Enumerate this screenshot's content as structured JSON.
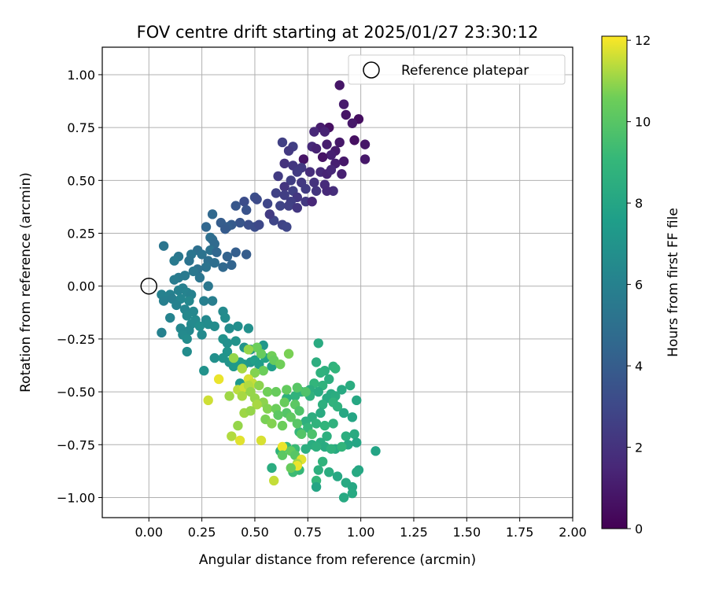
{
  "chart_data": {
    "type": "scatter",
    "title": "FOV centre drift starting at 2025/01/27 23:30:12",
    "xlabel": "Angular distance from reference (arcmin)",
    "ylabel": "Rotation from reference (arcmin)",
    "xlim": [
      -0.22,
      2.0
    ],
    "ylim": [
      -1.095,
      1.13
    ],
    "xticks": [
      "0.00",
      "0.25",
      "0.50",
      "0.75",
      "1.00",
      "1.25",
      "1.50",
      "1.75",
      "2.00"
    ],
    "yticks": [
      "1.00",
      "0.75",
      "0.50",
      "0.25",
      "0.00",
      "−0.25",
      "−0.50",
      "−0.75",
      "−1.00"
    ],
    "grid": true,
    "legend": {
      "position": "top-right",
      "entries": [
        "Reference platepar"
      ]
    },
    "reference_point": {
      "x": 0.0,
      "y": 0.0
    },
    "colorbar": {
      "label": "Hours from first FF file",
      "colormap": "viridis",
      "range": [
        0,
        12.1
      ],
      "ticks": [
        "0",
        "2",
        "4",
        "6",
        "8",
        "10",
        "12"
      ]
    },
    "series_points": [
      [
        0.9,
        0.95,
        0.8
      ],
      [
        0.92,
        0.86,
        1.0
      ],
      [
        0.93,
        0.81,
        0.7
      ],
      [
        0.99,
        0.79,
        0.5
      ],
      [
        0.96,
        0.77,
        0.9
      ],
      [
        0.85,
        0.75,
        0.6
      ],
      [
        0.81,
        0.75,
        1.1
      ],
      [
        0.83,
        0.73,
        1.3
      ],
      [
        0.78,
        0.73,
        1.5
      ],
      [
        1.02,
        0.67,
        0.8
      ],
      [
        0.97,
        0.69,
        0.6
      ],
      [
        0.9,
        0.68,
        0.9
      ],
      [
        0.84,
        0.67,
        1.1
      ],
      [
        0.77,
        0.66,
        1.6
      ],
      [
        0.79,
        0.65,
        1.3
      ],
      [
        0.63,
        0.68,
        2.6
      ],
      [
        0.68,
        0.66,
        2.5
      ],
      [
        0.66,
        0.64,
        2.3
      ],
      [
        0.88,
        0.64,
        1.0
      ],
      [
        0.86,
        0.62,
        1.2
      ],
      [
        0.82,
        0.61,
        0.7
      ],
      [
        0.73,
        0.6,
        0.7
      ],
      [
        1.02,
        0.6,
        0.9
      ],
      [
        0.92,
        0.59,
        0.9
      ],
      [
        0.88,
        0.58,
        1.2
      ],
      [
        0.64,
        0.58,
        2.0
      ],
      [
        0.68,
        0.57,
        2.2
      ],
      [
        0.72,
        0.56,
        2.3
      ],
      [
        0.7,
        0.54,
        2.4
      ],
      [
        0.76,
        0.54,
        1.8
      ],
      [
        0.81,
        0.54,
        1.6
      ],
      [
        0.84,
        0.53,
        1.4
      ],
      [
        0.86,
        0.55,
        1.5
      ],
      [
        0.91,
        0.53,
        1.2
      ],
      [
        0.61,
        0.52,
        2.4
      ],
      [
        0.67,
        0.5,
        2.5
      ],
      [
        0.72,
        0.49,
        2.3
      ],
      [
        0.78,
        0.49,
        2.0
      ],
      [
        0.83,
        0.48,
        1.7
      ],
      [
        0.64,
        0.47,
        2.1
      ],
      [
        0.68,
        0.45,
        2.6
      ],
      [
        0.74,
        0.46,
        2.4
      ],
      [
        0.79,
        0.45,
        2.1
      ],
      [
        0.87,
        0.45,
        1.8
      ],
      [
        0.6,
        0.44,
        2.7
      ],
      [
        0.64,
        0.43,
        2.5
      ],
      [
        0.7,
        0.42,
        2.2
      ],
      [
        0.67,
        0.4,
        2.5
      ],
      [
        0.74,
        0.4,
        2.3
      ],
      [
        0.84,
        0.45,
        1.6
      ],
      [
        0.5,
        0.42,
        3.3
      ],
      [
        0.51,
        0.41,
        3.1
      ],
      [
        0.56,
        0.39,
        2.9
      ],
      [
        0.62,
        0.38,
        2.8
      ],
      [
        0.66,
        0.38,
        2.6
      ],
      [
        0.7,
        0.37,
        2.2
      ],
      [
        0.77,
        0.4,
        1.5
      ],
      [
        0.45,
        0.4,
        3.2
      ],
      [
        0.41,
        0.38,
        3.7
      ],
      [
        0.46,
        0.36,
        3.5
      ],
      [
        0.59,
        0.31,
        2.9
      ],
      [
        0.63,
        0.29,
        2.8
      ],
      [
        0.57,
        0.34,
        2.4
      ],
      [
        0.65,
        0.28,
        2.9
      ],
      [
        0.47,
        0.29,
        3.3
      ],
      [
        0.43,
        0.3,
        3.6
      ],
      [
        0.39,
        0.29,
        3.9
      ],
      [
        0.34,
        0.3,
        4.0
      ],
      [
        0.37,
        0.28,
        4.1
      ],
      [
        0.5,
        0.28,
        3.2
      ],
      [
        0.52,
        0.29,
        3.0
      ],
      [
        0.36,
        0.27,
        3.9
      ],
      [
        0.3,
        0.34,
        4.6
      ],
      [
        0.27,
        0.28,
        4.5
      ],
      [
        0.29,
        0.23,
        5.0
      ],
      [
        0.3,
        0.22,
        4.8
      ],
      [
        0.31,
        0.2,
        4.7
      ],
      [
        0.29,
        0.17,
        5.1
      ],
      [
        0.32,
        0.16,
        4.5
      ],
      [
        0.41,
        0.16,
        4.1
      ],
      [
        0.37,
        0.14,
        4.3
      ],
      [
        0.46,
        0.15,
        4.0
      ],
      [
        0.23,
        0.17,
        5.0
      ],
      [
        0.25,
        0.15,
        5.2
      ],
      [
        0.2,
        0.15,
        5.3
      ],
      [
        0.14,
        0.14,
        5.4
      ],
      [
        0.12,
        0.12,
        5.6
      ],
      [
        0.07,
        0.19,
        5.3
      ],
      [
        0.19,
        0.12,
        5.2
      ],
      [
        0.28,
        0.12,
        5.0
      ],
      [
        0.31,
        0.11,
        4.9
      ],
      [
        0.27,
        0.09,
        5.2
      ],
      [
        0.35,
        0.09,
        4.6
      ],
      [
        0.39,
        0.1,
        4.4
      ],
      [
        0.23,
        0.08,
        5.1
      ],
      [
        0.21,
        0.07,
        5.4
      ],
      [
        0.24,
        0.04,
        5.3
      ],
      [
        0.17,
        0.05,
        5.6
      ],
      [
        0.14,
        0.04,
        5.6
      ],
      [
        0.12,
        0.03,
        5.7
      ],
      [
        0.28,
        0.0,
        5.4
      ],
      [
        0.16,
        -0.01,
        5.9
      ],
      [
        0.14,
        -0.02,
        6.0
      ],
      [
        0.18,
        -0.03,
        6.1
      ],
      [
        0.06,
        -0.04,
        6.0
      ],
      [
        0.1,
        -0.04,
        6.0
      ],
      [
        0.2,
        -0.04,
        6.0
      ],
      [
        0.07,
        -0.07,
        5.9
      ],
      [
        0.11,
        -0.06,
        5.8
      ],
      [
        0.15,
        -0.06,
        6.2
      ],
      [
        0.19,
        -0.07,
        6.3
      ],
      [
        0.26,
        -0.07,
        5.9
      ],
      [
        0.3,
        -0.07,
        5.8
      ],
      [
        0.13,
        -0.09,
        6.0
      ],
      [
        0.17,
        -0.11,
        6.2
      ],
      [
        0.21,
        -0.12,
        6.3
      ],
      [
        0.18,
        -0.14,
        6.4
      ],
      [
        0.22,
        -0.16,
        6.5
      ],
      [
        0.1,
        -0.15,
        6.1
      ],
      [
        0.27,
        -0.16,
        6.4
      ],
      [
        0.35,
        -0.12,
        6.5
      ],
      [
        0.36,
        -0.15,
        6.6
      ],
      [
        0.2,
        -0.18,
        6.5
      ],
      [
        0.24,
        -0.19,
        6.7
      ],
      [
        0.28,
        -0.18,
        6.6
      ],
      [
        0.31,
        -0.19,
        6.6
      ],
      [
        0.38,
        -0.2,
        6.6
      ],
      [
        0.42,
        -0.19,
        6.7
      ],
      [
        0.47,
        -0.2,
        6.8
      ],
      [
        0.15,
        -0.2,
        6.3
      ],
      [
        0.19,
        -0.21,
        6.4
      ],
      [
        0.25,
        -0.23,
        6.5
      ],
      [
        0.06,
        -0.22,
        6.0
      ],
      [
        0.16,
        -0.23,
        6.5
      ],
      [
        0.18,
        -0.25,
        6.6
      ],
      [
        0.35,
        -0.25,
        6.9
      ],
      [
        0.37,
        -0.27,
        6.8
      ],
      [
        0.41,
        -0.26,
        6.9
      ],
      [
        0.45,
        -0.29,
        7.0
      ],
      [
        0.48,
        -0.3,
        7.1
      ],
      [
        0.54,
        -0.28,
        7.2
      ],
      [
        0.37,
        -0.31,
        7.0
      ],
      [
        0.18,
        -0.31,
        6.6
      ],
      [
        0.31,
        -0.34,
        6.8
      ],
      [
        0.26,
        -0.4,
        6.9
      ],
      [
        0.35,
        -0.34,
        7.0
      ],
      [
        0.38,
        -0.36,
        7.0
      ],
      [
        0.41,
        -0.36,
        7.2
      ],
      [
        0.4,
        -0.38,
        7.3
      ],
      [
        0.43,
        -0.36,
        7.4
      ],
      [
        0.45,
        -0.37,
        7.4
      ],
      [
        0.48,
        -0.36,
        7.2
      ],
      [
        0.5,
        -0.35,
        7.6
      ],
      [
        0.52,
        -0.37,
        7.5
      ],
      [
        0.55,
        -0.34,
        7.8
      ],
      [
        0.58,
        -0.38,
        7.6
      ],
      [
        0.43,
        -0.46,
        7.3
      ],
      [
        0.47,
        -0.49,
        7.5
      ],
      [
        0.8,
        -0.27,
        8.3
      ],
      [
        0.79,
        -0.36,
        8.5
      ],
      [
        0.83,
        -0.4,
        8.6
      ],
      [
        0.87,
        -0.38,
        8.7
      ],
      [
        0.88,
        -0.39,
        8.9
      ],
      [
        0.81,
        -0.41,
        8.7
      ],
      [
        0.85,
        -0.44,
        8.5
      ],
      [
        0.78,
        -0.46,
        8.9
      ],
      [
        0.82,
        -0.47,
        8.8
      ],
      [
        0.95,
        -0.47,
        8.4
      ],
      [
        0.91,
        -0.49,
        8.2
      ],
      [
        0.76,
        -0.49,
        8.5
      ],
      [
        0.8,
        -0.5,
        8.3
      ],
      [
        0.72,
        -0.5,
        8.7
      ],
      [
        0.86,
        -0.51,
        8.3
      ],
      [
        0.69,
        -0.52,
        8.8
      ],
      [
        0.65,
        -0.53,
        8.6
      ],
      [
        0.76,
        -0.52,
        8.7
      ],
      [
        0.84,
        -0.53,
        8.2
      ],
      [
        0.88,
        -0.52,
        8.4
      ],
      [
        0.98,
        -0.54,
        8.1
      ],
      [
        0.82,
        -0.56,
        8.6
      ],
      [
        0.87,
        -0.55,
        8.8
      ],
      [
        0.89,
        -0.57,
        8.7
      ],
      [
        0.96,
        -0.62,
        8.0
      ],
      [
        0.92,
        -0.6,
        8.1
      ],
      [
        0.81,
        -0.6,
        8.3
      ],
      [
        0.77,
        -0.62,
        8.5
      ],
      [
        0.74,
        -0.64,
        8.6
      ],
      [
        0.79,
        -0.65,
        8.8
      ],
      [
        0.87,
        -0.65,
        8.7
      ],
      [
        0.83,
        -0.66,
        8.9
      ],
      [
        0.75,
        -0.67,
        9.0
      ],
      [
        0.71,
        -0.69,
        9.0
      ],
      [
        0.77,
        -0.7,
        8.8
      ],
      [
        0.84,
        -0.71,
        8.6
      ],
      [
        0.93,
        -0.71,
        8.5
      ],
      [
        0.97,
        -0.7,
        8.3
      ],
      [
        0.81,
        -0.74,
        8.4
      ],
      [
        0.77,
        -0.75,
        8.4
      ],
      [
        0.74,
        -0.77,
        8.5
      ],
      [
        0.83,
        -0.76,
        8.3
      ],
      [
        0.88,
        -0.77,
        8.2
      ],
      [
        0.94,
        -0.75,
        8.1
      ],
      [
        0.98,
        -0.74,
        8.0
      ],
      [
        1.07,
        -0.78,
        7.9
      ],
      [
        0.62,
        -0.78,
        8.8
      ],
      [
        0.65,
        -0.76,
        9.0
      ],
      [
        0.69,
        -0.77,
        9.2
      ],
      [
        0.79,
        -0.76,
        8.6
      ],
      [
        0.86,
        -0.77,
        8.7
      ],
      [
        0.91,
        -0.76,
        8.9
      ],
      [
        0.82,
        -0.83,
        8.8
      ],
      [
        0.8,
        -0.87,
        8.6
      ],
      [
        0.71,
        -0.87,
        9.1
      ],
      [
        0.68,
        -0.88,
        9.3
      ],
      [
        0.89,
        -0.9,
        8.1
      ],
      [
        0.99,
        -0.87,
        8.0
      ],
      [
        0.98,
        -0.88,
        8.2
      ],
      [
        0.85,
        -0.88,
        8.4
      ],
      [
        0.79,
        -0.92,
        9.0
      ],
      [
        0.93,
        -0.93,
        8.2
      ],
      [
        0.79,
        -0.95,
        8.0
      ],
      [
        0.96,
        -0.95,
        8.1
      ],
      [
        0.96,
        -0.98,
        8.2
      ],
      [
        0.92,
        -1.0,
        8.2
      ],
      [
        0.58,
        -0.86,
        8.4
      ],
      [
        0.51,
        -0.29,
        10.5
      ],
      [
        0.47,
        -0.3,
        11.0
      ],
      [
        0.53,
        -0.32,
        10.4
      ],
      [
        0.58,
        -0.33,
        10.6
      ],
      [
        0.66,
        -0.32,
        10.7
      ],
      [
        0.59,
        -0.35,
        10.4
      ],
      [
        0.62,
        -0.37,
        10.6
      ],
      [
        0.54,
        -0.4,
        10.5
      ],
      [
        0.44,
        -0.39,
        11.2
      ],
      [
        0.5,
        -0.41,
        10.8
      ],
      [
        0.4,
        -0.34,
        11.0
      ],
      [
        0.33,
        -0.44,
        11.9
      ],
      [
        0.47,
        -0.44,
        11.7
      ],
      [
        0.49,
        -0.46,
        11.5
      ],
      [
        0.42,
        -0.49,
        11.4
      ],
      [
        0.45,
        -0.48,
        11.6
      ],
      [
        0.47,
        -0.47,
        11.3
      ],
      [
        0.52,
        -0.47,
        10.9
      ],
      [
        0.56,
        -0.5,
        10.6
      ],
      [
        0.6,
        -0.5,
        10.4
      ],
      [
        0.65,
        -0.49,
        10.3
      ],
      [
        0.7,
        -0.48,
        10.0
      ],
      [
        0.74,
        -0.5,
        9.8
      ],
      [
        0.48,
        -0.5,
        11.0
      ],
      [
        0.38,
        -0.52,
        11.1
      ],
      [
        0.44,
        -0.52,
        11.2
      ],
      [
        0.5,
        -0.53,
        11.0
      ],
      [
        0.54,
        -0.55,
        10.9
      ],
      [
        0.51,
        -0.56,
        11.2
      ],
      [
        0.56,
        -0.58,
        10.8
      ],
      [
        0.6,
        -0.58,
        10.5
      ],
      [
        0.64,
        -0.55,
        10.4
      ],
      [
        0.69,
        -0.56,
        10.1
      ],
      [
        0.71,
        -0.59,
        9.8
      ],
      [
        0.65,
        -0.6,
        9.9
      ],
      [
        0.61,
        -0.61,
        10.1
      ],
      [
        0.67,
        -0.62,
        10.2
      ],
      [
        0.28,
        -0.54,
        11.6
      ],
      [
        0.45,
        -0.6,
        11.1
      ],
      [
        0.48,
        -0.59,
        11.0
      ],
      [
        0.55,
        -0.63,
        10.7
      ],
      [
        0.58,
        -0.65,
        10.8
      ],
      [
        0.63,
        -0.66,
        10.5
      ],
      [
        0.7,
        -0.65,
        10.0
      ],
      [
        0.72,
        -0.7,
        9.9
      ],
      [
        0.77,
        -0.7,
        9.7
      ],
      [
        0.42,
        -0.66,
        11.0
      ],
      [
        0.39,
        -0.71,
        11.3
      ],
      [
        0.43,
        -0.73,
        11.8
      ],
      [
        0.53,
        -0.73,
        11.7
      ],
      [
        0.63,
        -0.76,
        11.9
      ],
      [
        0.67,
        -0.78,
        10.3
      ],
      [
        0.63,
        -0.8,
        10.1
      ],
      [
        0.69,
        -0.8,
        10.0
      ],
      [
        0.72,
        -0.82,
        11.8
      ],
      [
        0.7,
        -0.84,
        11.2
      ],
      [
        0.7,
        -0.85,
        11.9
      ],
      [
        0.67,
        -0.86,
        10.4
      ],
      [
        0.59,
        -0.92,
        11.5
      ]
    ]
  }
}
